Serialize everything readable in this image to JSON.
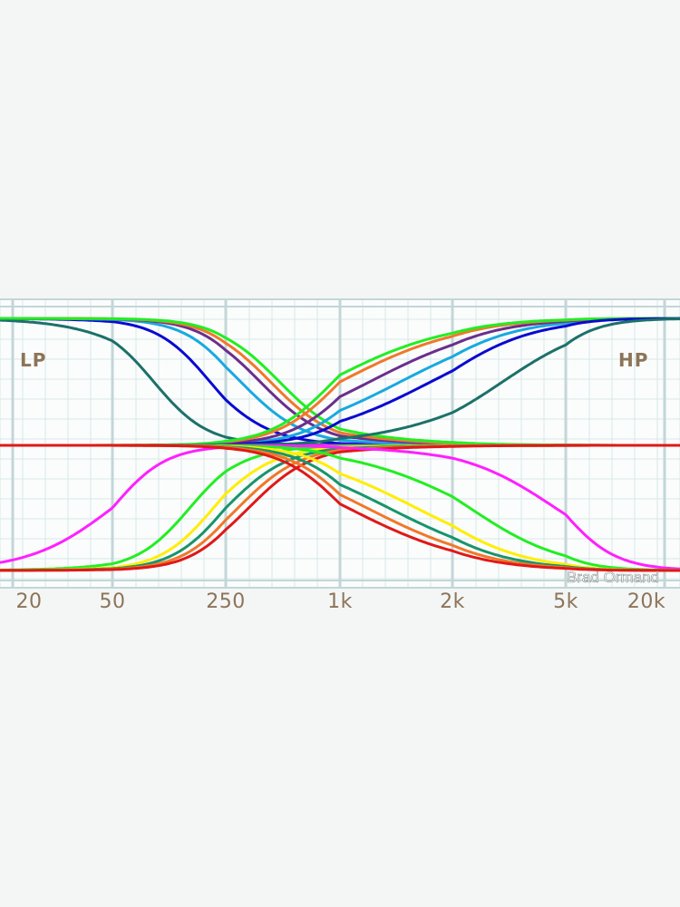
{
  "chart_data": {
    "type": "line",
    "xscale": "log",
    "x_ticks": [
      {
        "value": 20,
        "label": "20"
      },
      {
        "value": 50,
        "label": "50"
      },
      {
        "value": 250,
        "label": "250"
      },
      {
        "value": 1000,
        "label": "1k"
      },
      {
        "value": 2000,
        "label": "2k"
      },
      {
        "value": 5000,
        "label": "5k"
      },
      {
        "value": 20000,
        "label": "20k"
      }
    ],
    "xlim": [
      20,
      20000
    ],
    "ylim": [
      0,
      1
    ],
    "band_labels": {
      "low": "LP",
      "high": "HP"
    },
    "series": [
      {
        "kind": "lowpass",
        "color": "#1b7169",
        "cutoff_hz": 90,
        "steepness": 1.5
      },
      {
        "kind": "lowpass",
        "color": "#0a0ad0",
        "cutoff_hz": 200,
        "steepness": 1.5
      },
      {
        "kind": "lowpass",
        "color": "#17a9e0",
        "cutoff_hz": 300,
        "steepness": 1.5
      },
      {
        "kind": "lowpass",
        "color": "#6b2e8c",
        "cutoff_hz": 380,
        "steepness": 1.5
      },
      {
        "kind": "lowpass",
        "color": "#f0782a",
        "cutoff_hz": 430,
        "steepness": 1.5
      },
      {
        "kind": "lowpass",
        "color": "#22ee22",
        "cutoff_hz": 480,
        "steepness": 1.5
      },
      {
        "kind": "highpass",
        "color": "#ff20ff",
        "cutoff_hz": 50,
        "steepness": 1.5
      },
      {
        "kind": "highpass",
        "color": "#22ee22",
        "cutoff_hz": 150,
        "steepness": 1.5
      },
      {
        "kind": "highpass",
        "color": "#ffee00",
        "cutoff_hz": 210,
        "steepness": 1.5
      },
      {
        "kind": "highpass",
        "color": "#18946b",
        "cutoff_hz": 250,
        "steepness": 1.5
      },
      {
        "kind": "highpass",
        "color": "#f0782a",
        "cutoff_hz": 290,
        "steepness": 1.5
      },
      {
        "kind": "highpass",
        "color": "#e01818",
        "cutoff_hz": 330,
        "steepness": 1.5
      },
      {
        "kind": "highpass",
        "color": "#17a9e0",
        "cutoff_hz": 1450,
        "steepness": 1.5
      },
      {
        "kind": "highpass",
        "color": "#6b2e8c",
        "cutoff_hz": 1200,
        "steepness": 1.5
      },
      {
        "kind": "highpass",
        "color": "#f0782a",
        "cutoff_hz": 1000,
        "steepness": 1.5
      },
      {
        "kind": "highpass",
        "color": "#22ee22",
        "cutoff_hz": 920,
        "steepness": 1.5
      },
      {
        "kind": "highpass",
        "color": "#0a0ad0",
        "cutoff_hz": 1750,
        "steepness": 1.5
      },
      {
        "kind": "highpass",
        "color": "#1b7169",
        "cutoff_hz": 3000,
        "steepness": 1.5
      },
      {
        "kind": "lowpass",
        "color": "#ff20ff",
        "cutoff_hz": 4600,
        "steepness": 1.5
      },
      {
        "kind": "lowpass",
        "color": "#22ee22",
        "cutoff_hz": 2300,
        "steepness": 1.5
      },
      {
        "kind": "lowpass",
        "color": "#ffee00",
        "cutoff_hz": 1600,
        "steepness": 1.5
      },
      {
        "kind": "lowpass",
        "color": "#18946b",
        "cutoff_hz": 1350,
        "steepness": 1.5
      },
      {
        "kind": "lowpass",
        "color": "#f0782a",
        "cutoff_hz": 1180,
        "steepness": 1.5
      },
      {
        "kind": "lowpass",
        "color": "#e01818",
        "cutoff_hz": 1050,
        "steepness": 1.5
      }
    ],
    "grid": true
  },
  "credit": "Brad Ormand",
  "colors": {
    "background": "#f4f6f6",
    "plot_bg": "#fbfcfc",
    "grid_minor": "#d9e7e9",
    "grid_major": "#c3d6d8",
    "label": "#8c7458"
  }
}
